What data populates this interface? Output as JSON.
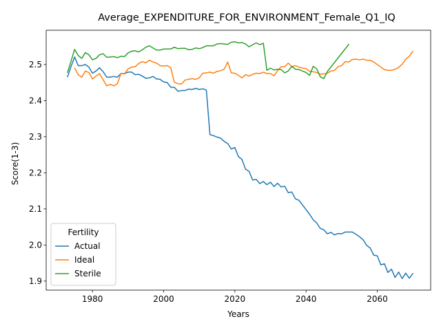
{
  "chart_data": {
    "type": "line",
    "title": "Average_EXPENDITURE_FOR_ENVIRONMENT_Female_Q1_IQ",
    "xlabel": "Years",
    "ylabel": "Score(1-3)",
    "xlim": [
      1967,
      2075
    ],
    "ylim": [
      1.875,
      2.595
    ],
    "xticks": [
      1980,
      2000,
      2020,
      2040,
      2060
    ],
    "yticks": [
      1.9,
      2.0,
      2.1,
      2.2,
      2.3,
      2.4,
      2.5
    ],
    "grid": false,
    "legend": {
      "title": "Fertility",
      "placement": "lower-left"
    },
    "series": [
      {
        "name": "Actual",
        "color": "#1f77b4",
        "x": [
          1973,
          1974,
          1975,
          1976,
          1977,
          1978,
          1979,
          1980,
          1981,
          1982,
          1983,
          1984,
          1985,
          1986,
          1987,
          1988,
          1989,
          1990,
          1991,
          1992,
          1993,
          1994,
          1995,
          1996,
          1997,
          1998,
          1999,
          2000,
          2001,
          2002,
          2003,
          2004,
          2005,
          2006,
          2007,
          2008,
          2009,
          2010,
          2011,
          2012,
          2013,
          2014,
          2015,
          2016,
          2017,
          2018,
          2019,
          2020,
          2021,
          2022,
          2023,
          2024,
          2025,
          2026,
          2027,
          2028,
          2029,
          2030,
          2031,
          2032,
          2033,
          2034,
          2035,
          2036,
          2037,
          2038,
          2039,
          2040,
          2041,
          2042,
          2043,
          2044,
          2045,
          2046,
          2047,
          2048,
          2049,
          2050,
          2051,
          2052,
          2053,
          2054,
          2055,
          2056,
          2057,
          2058,
          2059,
          2060,
          2061,
          2062,
          2063,
          2064,
          2065,
          2066,
          2067,
          2068,
          2069,
          2070
        ],
        "values": [
          2.466,
          2.495,
          2.521,
          2.497,
          2.497,
          2.5,
          2.493,
          2.476,
          2.482,
          2.491,
          2.48,
          2.465,
          2.465,
          2.467,
          2.465,
          2.475,
          2.475,
          2.479,
          2.479,
          2.472,
          2.473,
          2.468,
          2.462,
          2.463,
          2.467,
          2.46,
          2.459,
          2.452,
          2.45,
          2.437,
          2.437,
          2.426,
          2.428,
          2.428,
          2.432,
          2.431,
          2.434,
          2.431,
          2.433,
          2.429,
          2.306,
          2.303,
          2.299,
          2.296,
          2.287,
          2.281,
          2.266,
          2.27,
          2.245,
          2.237,
          2.21,
          2.204,
          2.18,
          2.182,
          2.17,
          2.176,
          2.167,
          2.174,
          2.162,
          2.171,
          2.161,
          2.163,
          2.145,
          2.147,
          2.128,
          2.124,
          2.111,
          2.098,
          2.085,
          2.07,
          2.061,
          2.046,
          2.042,
          2.031,
          2.035,
          2.028,
          2.032,
          2.031,
          2.036,
          2.036,
          2.036,
          2.03,
          2.023,
          2.015,
          1.999,
          1.992,
          1.972,
          1.97,
          1.945,
          1.948,
          1.924,
          1.933,
          1.91,
          1.925,
          1.907,
          1.922,
          1.908,
          1.921
        ]
      },
      {
        "name": "Ideal",
        "color": "#ff7f0e",
        "x": [
          1975,
          1976,
          1977,
          1978,
          1979,
          1980,
          1981,
          1982,
          1983,
          1984,
          1985,
          1986,
          1987,
          1988,
          1989,
          1990,
          1991,
          1992,
          1993,
          1994,
          1995,
          1996,
          1997,
          1998,
          1999,
          2000,
          2001,
          2002,
          2003,
          2004,
          2005,
          2006,
          2007,
          2008,
          2009,
          2010,
          2011,
          2012,
          2013,
          2014,
          2015,
          2016,
          2017,
          2018,
          2019,
          2020,
          2021,
          2022,
          2023,
          2024,
          2025,
          2026,
          2027,
          2028,
          2029,
          2030,
          2031,
          2032,
          2033,
          2034,
          2035,
          2036,
          2037,
          2038,
          2039,
          2040,
          2041,
          2042,
          2043,
          2044,
          2045,
          2046,
          2047,
          2048,
          2049,
          2050,
          2051,
          2052,
          2053,
          2054,
          2055,
          2056,
          2057,
          2058,
          2059,
          2060,
          2061,
          2062,
          2063,
          2064,
          2065,
          2066,
          2067,
          2068,
          2069,
          2070
        ],
        "values": [
          2.49,
          2.472,
          2.465,
          2.482,
          2.478,
          2.46,
          2.468,
          2.475,
          2.458,
          2.441,
          2.445,
          2.441,
          2.447,
          2.475,
          2.474,
          2.488,
          2.493,
          2.494,
          2.503,
          2.508,
          2.505,
          2.512,
          2.507,
          2.504,
          2.497,
          2.496,
          2.497,
          2.491,
          2.451,
          2.447,
          2.446,
          2.457,
          2.459,
          2.461,
          2.459,
          2.463,
          2.476,
          2.477,
          2.479,
          2.476,
          2.481,
          2.483,
          2.487,
          2.507,
          2.477,
          2.476,
          2.47,
          2.463,
          2.472,
          2.468,
          2.473,
          2.476,
          2.475,
          2.479,
          2.475,
          2.475,
          2.469,
          2.483,
          2.494,
          2.494,
          2.504,
          2.494,
          2.497,
          2.493,
          2.49,
          2.489,
          2.481,
          2.48,
          2.478,
          2.473,
          2.474,
          2.476,
          2.482,
          2.484,
          2.494,
          2.497,
          2.508,
          2.507,
          2.514,
          2.515,
          2.513,
          2.515,
          2.512,
          2.512,
          2.507,
          2.5,
          2.493,
          2.486,
          2.484,
          2.484,
          2.487,
          2.492,
          2.501,
          2.515,
          2.523,
          2.537
        ]
      },
      {
        "name": "Sterile",
        "color": "#2ca02c",
        "x": [
          1973,
          1974,
          1975,
          1976,
          1977,
          1978,
          1979,
          1980,
          1981,
          1982,
          1983,
          1984,
          1985,
          1986,
          1987,
          1988,
          1989,
          1990,
          1991,
          1992,
          1993,
          1994,
          1995,
          1996,
          1997,
          1998,
          1999,
          2000,
          2001,
          2002,
          2003,
          2004,
          2005,
          2006,
          2007,
          2008,
          2009,
          2010,
          2011,
          2012,
          2013,
          2014,
          2015,
          2016,
          2017,
          2018,
          2019,
          2020,
          2021,
          2022,
          2023,
          2024,
          2025,
          2026,
          2027,
          2028,
          2029,
          2030,
          2031,
          2032,
          2033,
          2034,
          2035,
          2036,
          2037,
          2038,
          2039,
          2040,
          2041,
          2042,
          2043,
          2044,
          2045,
          2046,
          2052
        ],
        "values": [
          2.478,
          2.51,
          2.542,
          2.525,
          2.517,
          2.533,
          2.527,
          2.513,
          2.517,
          2.527,
          2.53,
          2.52,
          2.521,
          2.522,
          2.519,
          2.523,
          2.522,
          2.532,
          2.537,
          2.538,
          2.535,
          2.541,
          2.548,
          2.552,
          2.546,
          2.54,
          2.54,
          2.543,
          2.543,
          2.543,
          2.548,
          2.544,
          2.545,
          2.545,
          2.541,
          2.542,
          2.546,
          2.544,
          2.547,
          2.552,
          2.552,
          2.552,
          2.557,
          2.558,
          2.557,
          2.556,
          2.562,
          2.563,
          2.56,
          2.561,
          2.557,
          2.549,
          2.555,
          2.56,
          2.555,
          2.559,
          2.484,
          2.49,
          2.485,
          2.487,
          2.486,
          2.477,
          2.482,
          2.495,
          2.487,
          2.486,
          2.482,
          2.478,
          2.47,
          2.495,
          2.488,
          2.466,
          2.461,
          2.481,
          2.556
        ]
      }
    ]
  }
}
